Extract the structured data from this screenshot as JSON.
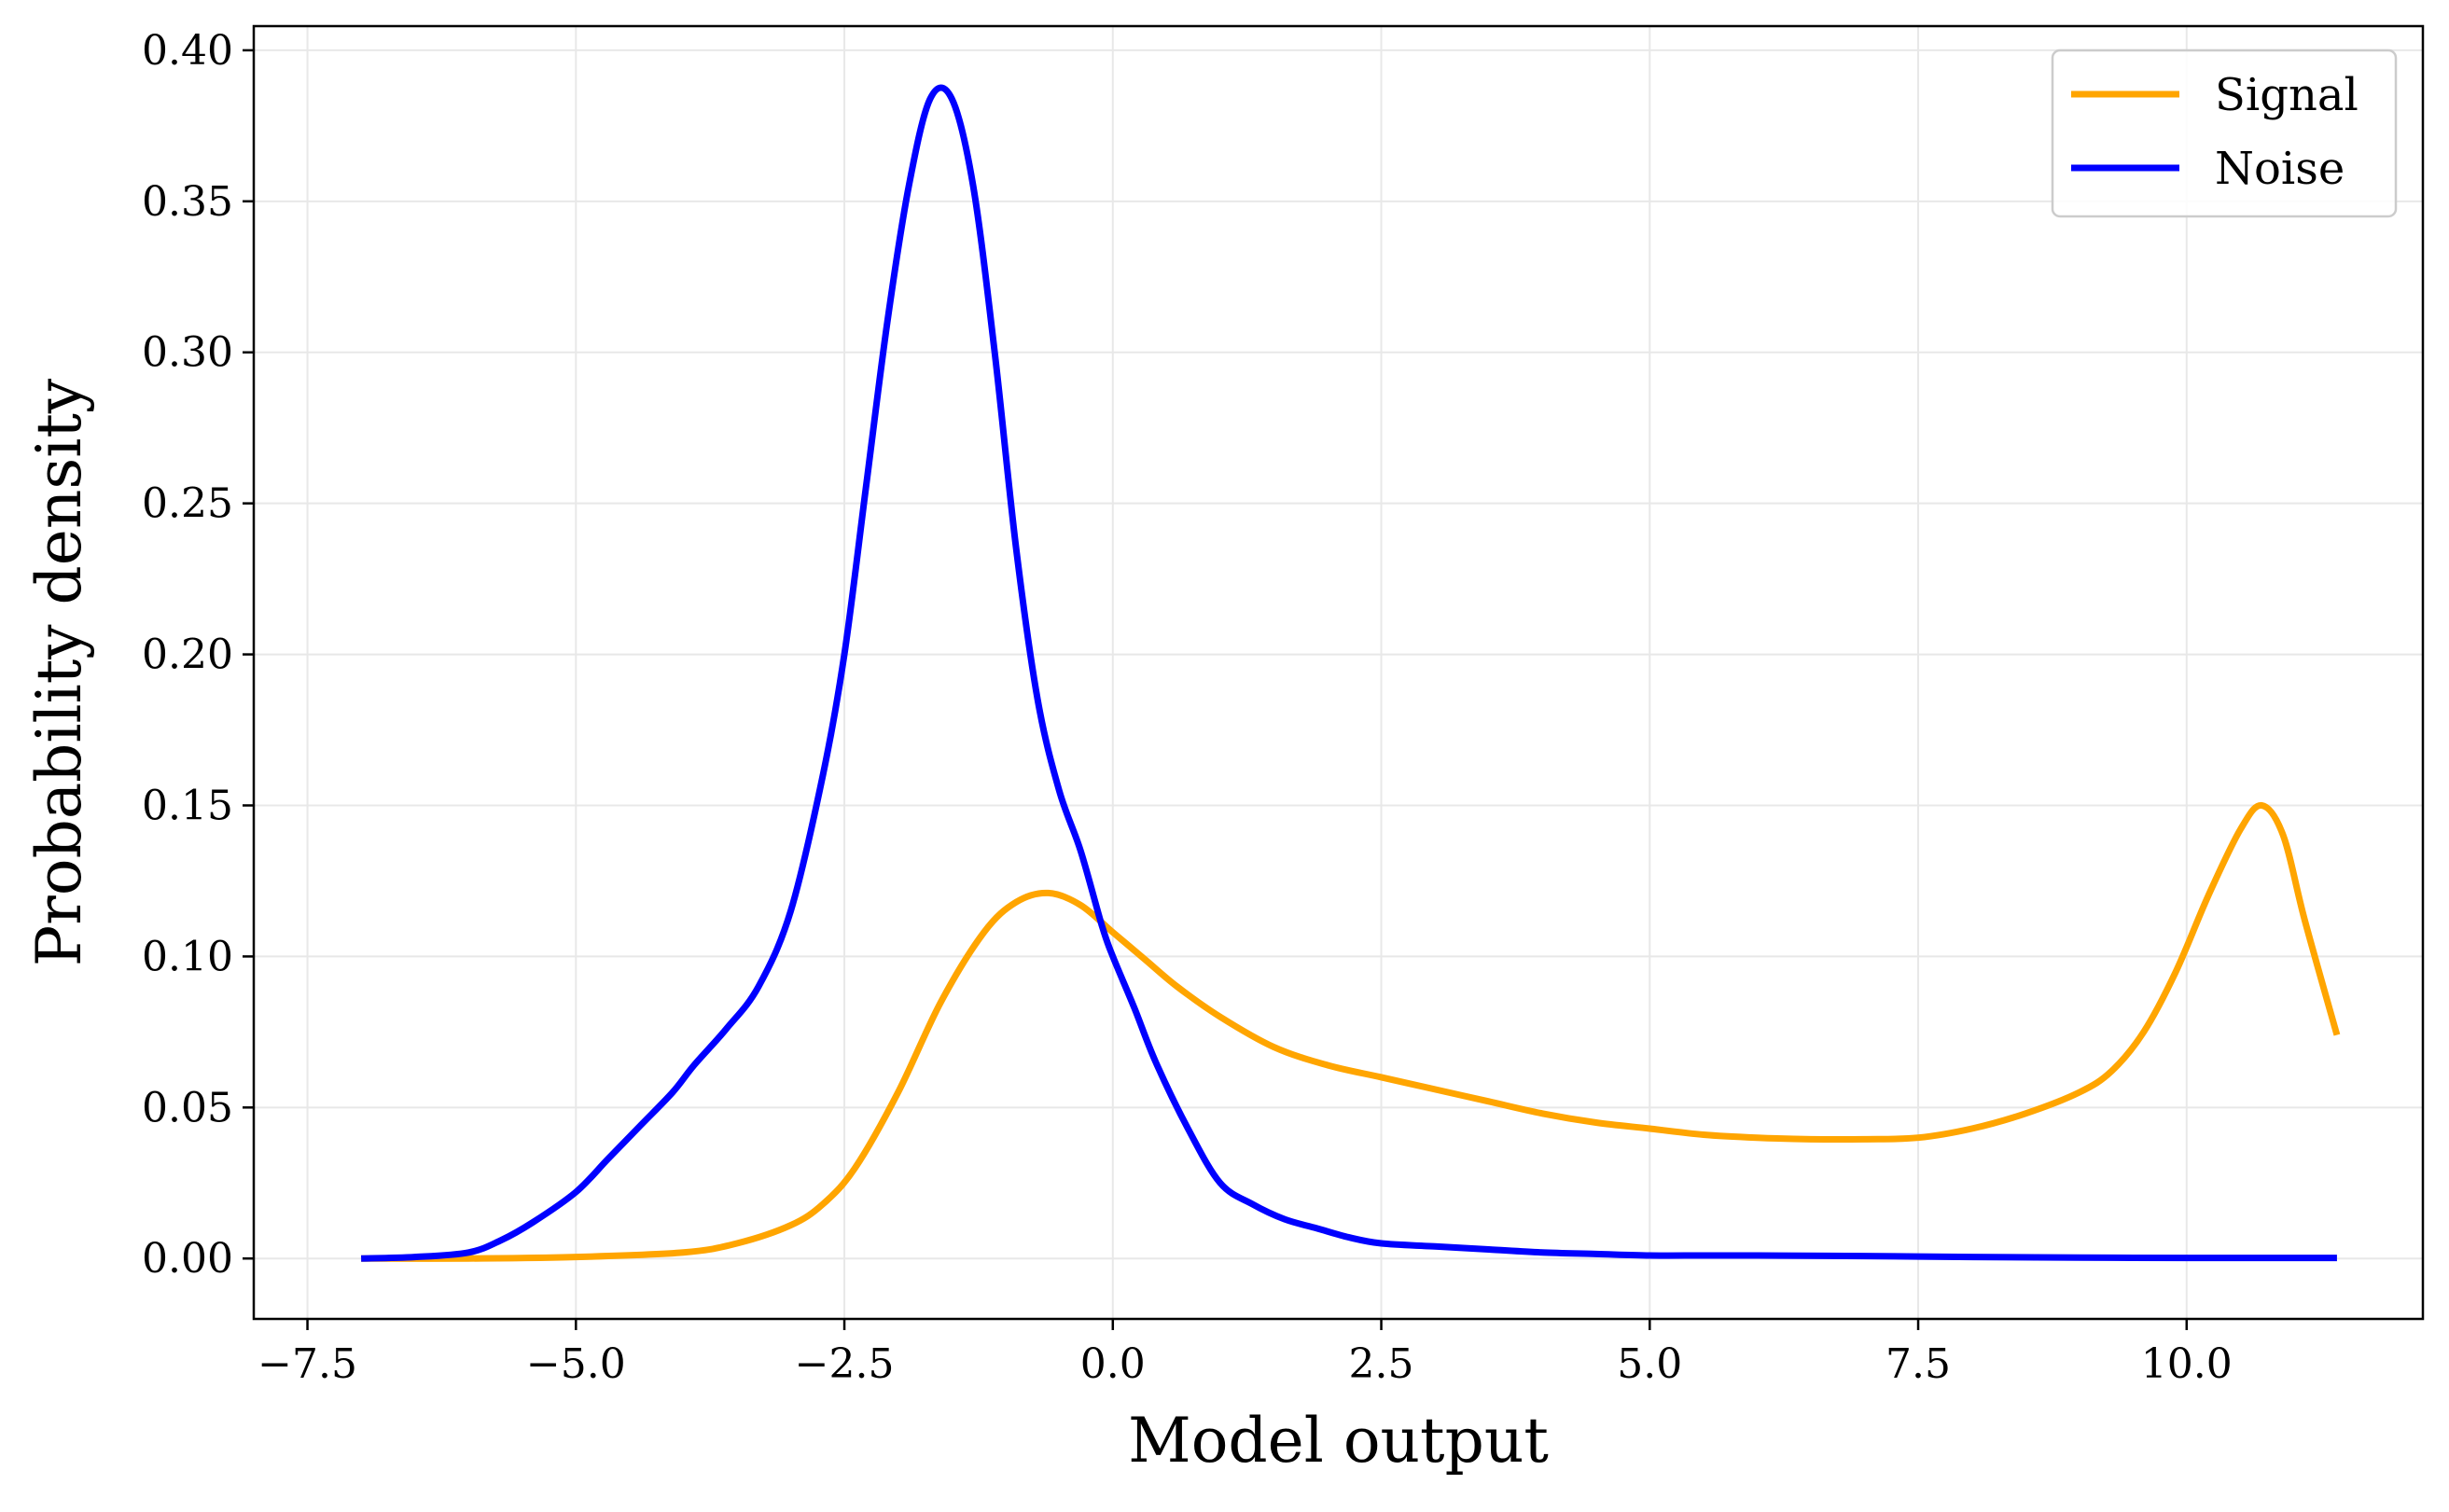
{
  "chart_data": {
    "type": "line",
    "title": "",
    "xlabel": "Model output",
    "ylabel": "Probability density",
    "xlim": [
      -8.0,
      12.2
    ],
    "ylim": [
      -0.02,
      0.408
    ],
    "xticks": [
      -7.5,
      -5.0,
      -2.5,
      0.0,
      2.5,
      5.0,
      7.5,
      10.0
    ],
    "xtick_labels": [
      "−7.5",
      "−5.0",
      "−2.5",
      "0.0",
      "2.5",
      "5.0",
      "7.5",
      "10.0"
    ],
    "yticks": [
      0.0,
      0.05,
      0.1,
      0.15,
      0.2,
      0.25,
      0.3,
      0.35,
      0.4
    ],
    "ytick_labels": [
      "0.00",
      "0.05",
      "0.10",
      "0.15",
      "0.20",
      "0.25",
      "0.30",
      "0.35",
      "0.40"
    ],
    "grid": true,
    "legend_position": "top-right",
    "series": [
      {
        "name": "Signal",
        "color": "#FFA500",
        "x": [
          -7.0,
          -6.0,
          -5.0,
          -4.0,
          -3.5,
          -3.0,
          -2.7,
          -2.4,
          -2.0,
          -1.6,
          -1.2,
          -0.9,
          -0.6,
          -0.3,
          0.0,
          0.3,
          0.6,
          1.0,
          1.5,
          2.0,
          2.5,
          3.0,
          3.5,
          4.0,
          4.5,
          5.0,
          5.5,
          6.0,
          6.5,
          7.0,
          7.5,
          8.0,
          8.5,
          9.0,
          9.3,
          9.6,
          9.9,
          10.2,
          10.5,
          10.7,
          10.9,
          11.1,
          11.4
        ],
        "y": [
          0.0,
          0.0,
          0.0005,
          0.002,
          0.005,
          0.011,
          0.018,
          0.03,
          0.055,
          0.085,
          0.108,
          0.118,
          0.121,
          0.117,
          0.108,
          0.099,
          0.09,
          0.08,
          0.07,
          0.064,
          0.06,
          0.056,
          0.052,
          0.048,
          0.045,
          0.043,
          0.041,
          0.04,
          0.0395,
          0.0395,
          0.04,
          0.043,
          0.048,
          0.055,
          0.062,
          0.075,
          0.095,
          0.12,
          0.142,
          0.15,
          0.14,
          0.112,
          0.074
        ]
      },
      {
        "name": "Noise",
        "color": "#0000FF",
        "x": [
          -7.0,
          -6.5,
          -6.0,
          -5.7,
          -5.4,
          -5.0,
          -4.7,
          -4.4,
          -4.1,
          -3.9,
          -3.6,
          -3.3,
          -3.0,
          -2.7,
          -2.5,
          -2.3,
          -2.1,
          -1.9,
          -1.7,
          -1.5,
          -1.3,
          -1.1,
          -0.9,
          -0.7,
          -0.5,
          -0.3,
          -0.1,
          0.0,
          0.2,
          0.4,
          0.7,
          1.0,
          1.3,
          1.6,
          1.9,
          2.2,
          2.5,
          3.0,
          3.5,
          4.0,
          4.5,
          5.0,
          5.5,
          6.0,
          7.0,
          8.0,
          9.0,
          10.0,
          11.4
        ],
        "y": [
          0.0,
          0.0005,
          0.002,
          0.006,
          0.012,
          0.022,
          0.033,
          0.044,
          0.055,
          0.064,
          0.076,
          0.09,
          0.115,
          0.16,
          0.2,
          0.255,
          0.31,
          0.355,
          0.384,
          0.384,
          0.355,
          0.3,
          0.235,
          0.185,
          0.155,
          0.135,
          0.11,
          0.1,
          0.083,
          0.065,
          0.043,
          0.025,
          0.018,
          0.013,
          0.01,
          0.007,
          0.005,
          0.004,
          0.003,
          0.002,
          0.0015,
          0.001,
          0.001,
          0.001,
          0.0008,
          0.0005,
          0.0003,
          0.0002,
          0.0002
        ]
      }
    ]
  }
}
